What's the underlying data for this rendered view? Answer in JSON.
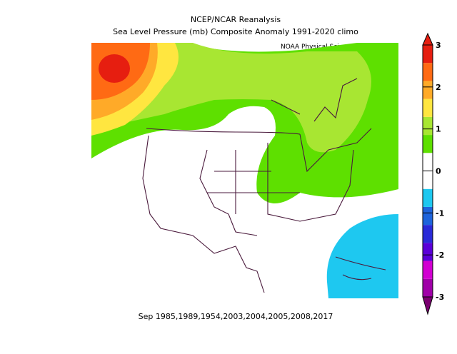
{
  "header": {
    "title": "NCEP/NCAR Reanalysis",
    "subtitle": "Sea Level Pressure (mb) Composite Anomaly 1991-2020 climo",
    "credit": "NOAA Physical Sciences Laboratory"
  },
  "footer": {
    "caption": "Sep  1985,1989,1954,2003,2004,2005,2008,2017"
  },
  "colorbar": {
    "ticks": [
      -3,
      -2,
      -1,
      0,
      1,
      2,
      3
    ],
    "colors": [
      "#7a0070",
      "#a000a8",
      "#d200d2",
      "#5a00d8",
      "#2a2ad8",
      "#1e64dc",
      "#1ec8f0",
      "#ffffff",
      "#ffffff",
      "#5ee000",
      "#a8e632",
      "#ffe640",
      "#ffaa28",
      "#ff6a14",
      "#e61e10",
      "#e61e10"
    ]
  }
}
